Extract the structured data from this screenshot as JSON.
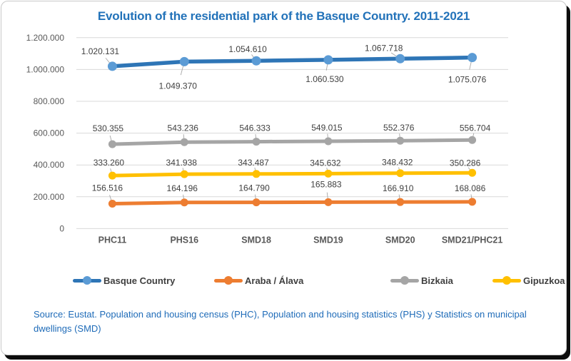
{
  "source_note": "Source: Eustat. Population and housing census (PHC), Population and housing statistics (PHS) y Statistics on municipal dwellings (SMD)",
  "colors": {
    "title_blue": "#2272b9",
    "grid": "#d9d9d9",
    "axis_text": "#595959",
    "data_label": "#404040",
    "leader": "#a6a6a6"
  },
  "chart_data": {
    "type": "line",
    "title": "Evolution of the residential park of the Basque Country. 2011-2021",
    "xlabel": "",
    "ylabel": "",
    "grid": true,
    "legend_position": "bottom",
    "ylim": [
      0,
      1200000
    ],
    "categories": [
      "PHC11",
      "PHS16",
      "SMD18",
      "SMD19",
      "SMD20",
      "SMD21/PHC21"
    ],
    "y_ticks": [
      {
        "label": "0",
        "value": 0
      },
      {
        "label": "200.000",
        "value": 200000
      },
      {
        "label": "400.000",
        "value": 400000
      },
      {
        "label": "600.000",
        "value": 600000
      },
      {
        "label": "800.000",
        "value": 800000
      },
      {
        "label": "1.000.000",
        "value": 1000000
      },
      {
        "label": "1.200.000",
        "value": 1200000
      }
    ],
    "series": [
      {
        "name": "Basque Country",
        "color": "#2e75b6",
        "marker_color": "#5b9bd5",
        "line_width": 5.5,
        "marker_radius": 6.5,
        "values": [
          1020131,
          1049370,
          1054610,
          1060530,
          1067718,
          1075076
        ],
        "labels": [
          "1.020.131",
          "1.049.370",
          "1.054.610",
          "1.060.530",
          "1.067.718",
          "1.075.076"
        ],
        "label_dx": [
          -17,
          -9,
          -12,
          -5,
          -23,
          -7
        ],
        "label_dy": [
          -17,
          38,
          -12,
          31,
          -11,
          35
        ]
      },
      {
        "name": "Araba / Álava",
        "color": "#ed7d31",
        "marker_color": "#ed7d31",
        "line_width": 5,
        "marker_radius": 5.5,
        "values": [
          156516,
          164196,
          164790,
          165883,
          166910,
          168086
        ],
        "labels": [
          "156.516",
          "164.196",
          "164.790",
          "165.883",
          "166.910",
          "168.086"
        ],
        "label_dx": [
          -7,
          -3,
          -3,
          -3,
          -3,
          -3
        ],
        "label_dy": [
          -18,
          -16,
          -16,
          -21,
          -15,
          -15
        ]
      },
      {
        "name": "Bizkaia",
        "color": "#a5a5a5",
        "marker_color": "#a5a5a5",
        "line_width": 5,
        "marker_radius": 5.5,
        "values": [
          530355,
          543236,
          546333,
          549015,
          552376,
          556704
        ],
        "labels": [
          "530.355",
          "543.236",
          "546.333",
          "549.015",
          "552.376",
          "556.704"
        ],
        "label_dx": [
          -6,
          -2,
          -2,
          -2,
          -2,
          4
        ],
        "label_dy": [
          -18,
          -16,
          -15,
          -15,
          -14,
          -13
        ]
      },
      {
        "name": "Gipuzkoa",
        "color": "#ffc000",
        "marker_color": "#ffc000",
        "line_width": 5,
        "marker_radius": 5.5,
        "values": [
          333260,
          341938,
          343487,
          345632,
          348432,
          350286
        ],
        "labels": [
          "333.260",
          "341.938",
          "343.487",
          "345.632",
          "348.432",
          "350.286"
        ],
        "label_dx": [
          -5,
          -4,
          -4,
          -4,
          -4,
          -10
        ],
        "label_dy": [
          -14,
          -12,
          -12,
          -11,
          -11,
          -10
        ]
      }
    ]
  }
}
